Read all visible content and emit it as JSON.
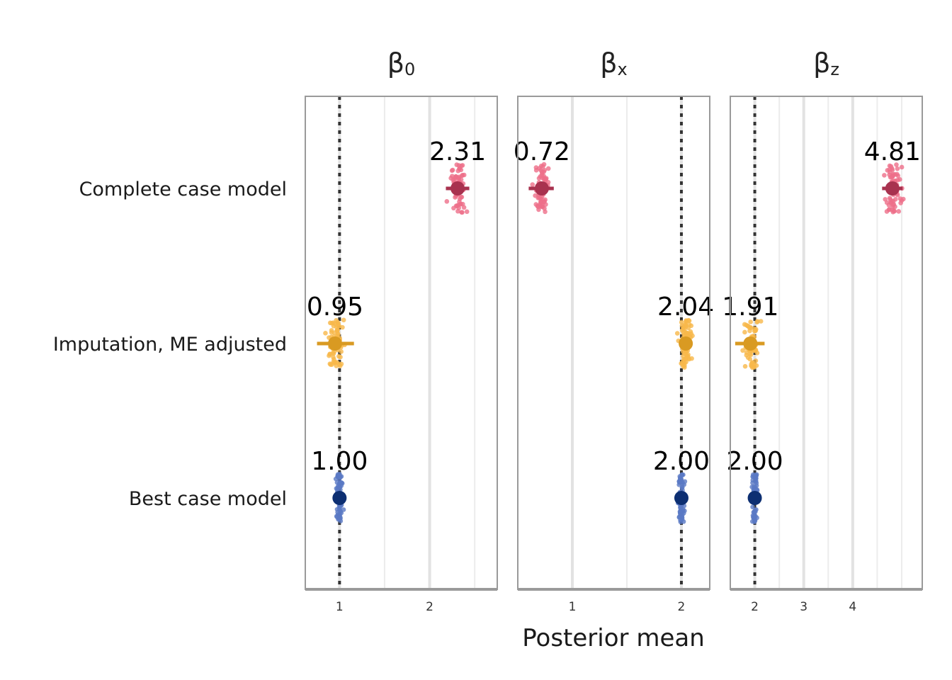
{
  "chart_data": {
    "type": "scatter",
    "xlabel": "Posterior mean",
    "rows": [
      "Complete case model",
      "Imputation, ME adjusted",
      "Best case model"
    ],
    "colors": {
      "Complete case model": {
        "points": "#ee6f8a",
        "mean": "#a8324f"
      },
      "Imputation, ME adjusted": {
        "points": "#f7b84a",
        "mean": "#d99a22"
      },
      "Best case model": {
        "points": "#5a79c4",
        "mean": "#0d2f72"
      }
    },
    "facets": [
      {
        "title": "β",
        "subscript": "0",
        "xlim": [
          0.62,
          2.75
        ],
        "ticks": [
          1,
          2
        ],
        "tick_labels": [
          "1",
          "2"
        ],
        "minor_grid": [
          1.5,
          2.5
        ],
        "true_value": 1,
        "estimates": [
          {
            "row": "Complete case model",
            "label": "2.31",
            "mean": 2.31,
            "spread": 0.2,
            "interval": [
              2.18,
              2.44
            ]
          },
          {
            "row": "Imputation, ME adjusted",
            "label": "0.95",
            "mean": 0.95,
            "spread": 0.2,
            "interval": [
              0.75,
              1.16
            ]
          },
          {
            "row": "Best case model",
            "label": "1.00",
            "mean": 1.0,
            "spread": 0.08,
            "interval": [
              0.97,
              1.03
            ]
          }
        ]
      },
      {
        "title": "β",
        "subscript": "x",
        "xlim": [
          0.5,
          2.26
        ],
        "ticks": [
          1,
          2
        ],
        "tick_labels": [
          "1",
          "2"
        ],
        "minor_grid": [
          1.5
        ],
        "true_value": 2,
        "estimates": [
          {
            "row": "Complete case model",
            "label": "0.72",
            "mean": 0.72,
            "spread": 0.13,
            "interval": [
              0.6,
              0.83
            ]
          },
          {
            "row": "Imputation, ME adjusted",
            "label": "2.04",
            "mean": 2.04,
            "spread": 0.13,
            "interval": [
              2.0,
              2.08
            ]
          },
          {
            "row": "Best case model",
            "label": "2.00",
            "mean": 2.0,
            "spread": 0.06,
            "interval": [
              1.98,
              2.02
            ]
          }
        ]
      },
      {
        "title": "β",
        "subscript": "z",
        "xlim": [
          1.5,
          5.42
        ],
        "ticks": [
          2,
          3,
          4
        ],
        "tick_labels": [
          "2",
          "3",
          "4"
        ],
        "minor_grid": [
          1.5,
          2.5,
          3.5,
          4.5,
          5,
          5.5
        ],
        "true_value": 2,
        "estimates": [
          {
            "row": "Complete case model",
            "label": "4.81",
            "mean": 4.81,
            "spread": 0.4,
            "interval": [
              4.6,
              5.02
            ]
          },
          {
            "row": "Imputation, ME adjusted",
            "label": "1.91",
            "mean": 1.91,
            "spread": 0.35,
            "interval": [
              1.6,
              2.2
            ]
          },
          {
            "row": "Best case model",
            "label": "2.00",
            "mean": 2.0,
            "spread": 0.12,
            "interval": [
              1.97,
              2.03
            ]
          }
        ]
      }
    ]
  }
}
